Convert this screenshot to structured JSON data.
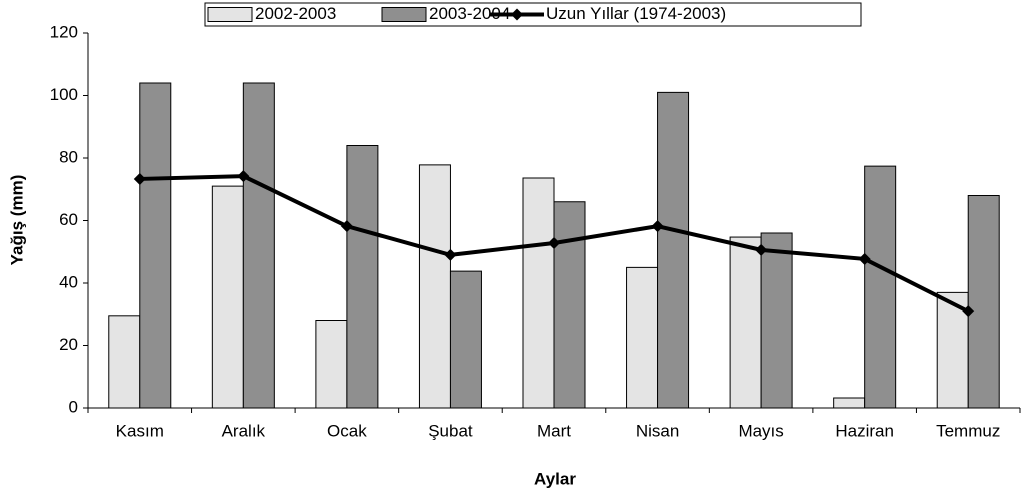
{
  "chart_data": {
    "type": "bar",
    "x_label": "Aylar",
    "y_label": "Yağış (mm)",
    "categories": [
      "Kasım",
      "Aralık",
      "Ocak",
      "Şubat",
      "Mart",
      "Nisan",
      "Mayıs",
      "Haziran",
      "Temmuz"
    ],
    "series": [
      {
        "name": "2002-2003",
        "color": "#e4e4e4",
        "values": [
          29.5,
          71,
          28,
          77.8,
          73.6,
          45,
          54.7,
          3.2,
          37
        ]
      },
      {
        "name": "2003-2004",
        "color": "#8f8f8f",
        "values": [
          104,
          104,
          84,
          43.8,
          66,
          101,
          56,
          77.4,
          68
        ]
      },
      {
        "name": "Uzun Yıllar (1974-2003)",
        "type": "line",
        "color": "#000000",
        "values": [
          73.3,
          74.2,
          58.2,
          49,
          52.8,
          58.2,
          50.6,
          47.7,
          31
        ]
      }
    ],
    "ylim": [
      0,
      120
    ],
    "yticks": [
      0,
      20,
      40,
      60,
      80,
      100,
      120
    ],
    "grid": false,
    "legend": "top"
  }
}
